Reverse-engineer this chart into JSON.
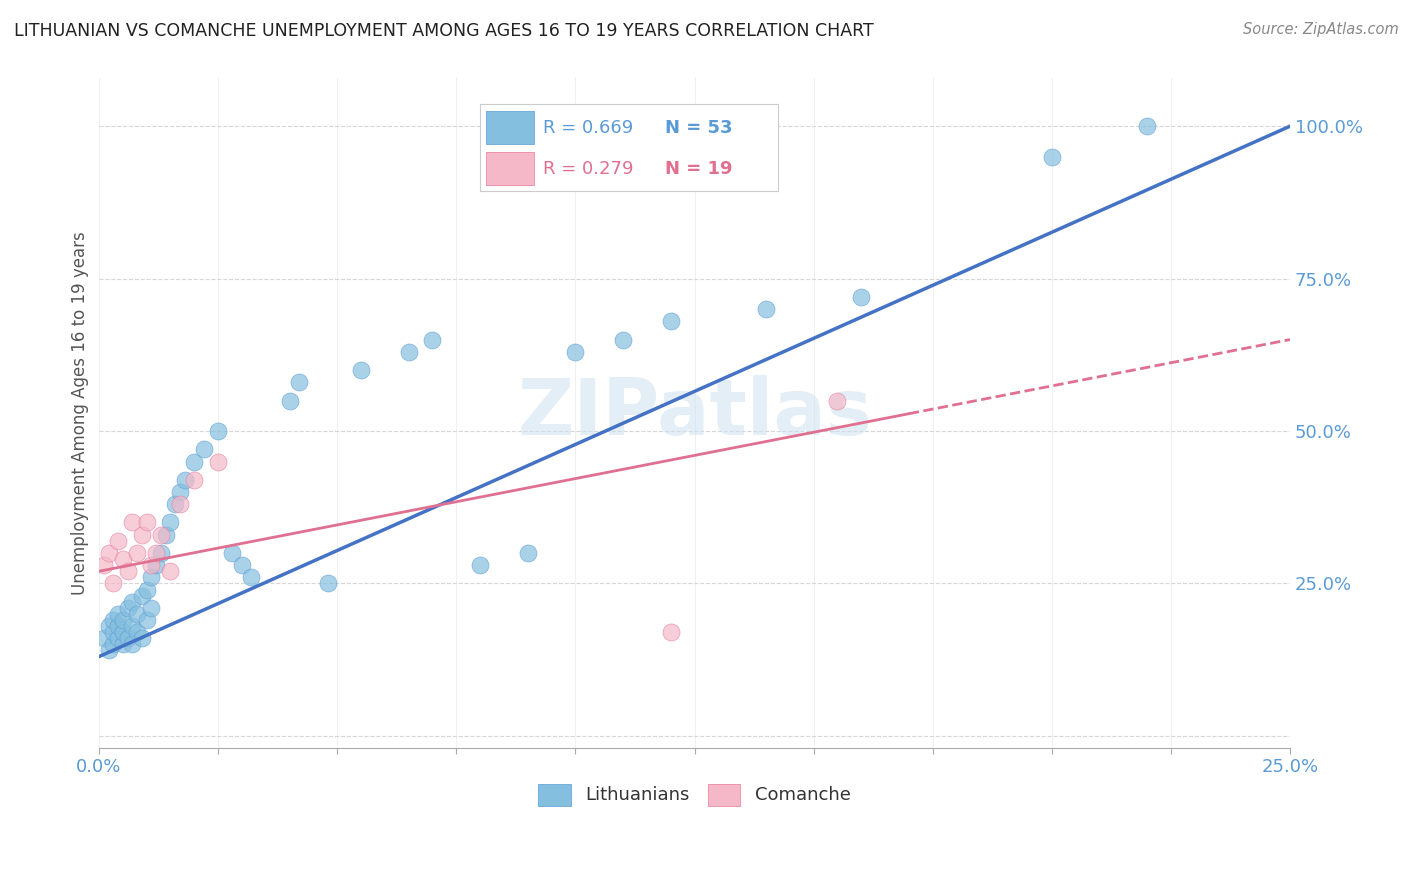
{
  "title": "LITHUANIAN VS COMANCHE UNEMPLOYMENT AMONG AGES 16 TO 19 YEARS CORRELATION CHART",
  "source": "Source: ZipAtlas.com",
  "ylabel": "Unemployment Among Ages 16 to 19 years",
  "xlim": [
    0.0,
    0.25
  ],
  "ylim": [
    -0.02,
    1.08
  ],
  "blue_color": "#85bfdf",
  "blue_edge_color": "#5b9bd5",
  "pink_color": "#f4b8c8",
  "pink_edge_color": "#e87898",
  "blue_line_color": "#4472c4",
  "pink_line_color": "#e07090",
  "axis_tick_color": "#5b9bd5",
  "title_color": "#222222",
  "source_color": "#888888",
  "watermark_color": "#cce0f0",
  "grid_color": "#cccccc",
  "legend_R_color": "#5b9bd5",
  "legend_N_color": "#5b9bd5",
  "legend_pink_R_color": "#e07090",
  "legend_pink_N_color": "#e07090",
  "blue_scatter_x": [
    0.001,
    0.002,
    0.002,
    0.003,
    0.003,
    0.003,
    0.004,
    0.004,
    0.004,
    0.005,
    0.005,
    0.005,
    0.006,
    0.006,
    0.007,
    0.007,
    0.007,
    0.008,
    0.008,
    0.009,
    0.009,
    0.01,
    0.01,
    0.011,
    0.011,
    0.012,
    0.013,
    0.014,
    0.015,
    0.016,
    0.017,
    0.018,
    0.02,
    0.022,
    0.025,
    0.028,
    0.03,
    0.032,
    0.04,
    0.042,
    0.048,
    0.055,
    0.065,
    0.07,
    0.08,
    0.09,
    0.1,
    0.11,
    0.12,
    0.14,
    0.16,
    0.2,
    0.22
  ],
  "blue_scatter_y": [
    0.16,
    0.14,
    0.18,
    0.15,
    0.17,
    0.19,
    0.16,
    0.18,
    0.2,
    0.15,
    0.17,
    0.19,
    0.16,
    0.21,
    0.15,
    0.18,
    0.22,
    0.17,
    0.2,
    0.16,
    0.23,
    0.19,
    0.24,
    0.21,
    0.26,
    0.28,
    0.3,
    0.33,
    0.35,
    0.38,
    0.4,
    0.42,
    0.45,
    0.47,
    0.5,
    0.3,
    0.28,
    0.26,
    0.55,
    0.58,
    0.25,
    0.6,
    0.63,
    0.65,
    0.28,
    0.3,
    0.63,
    0.65,
    0.68,
    0.7,
    0.72,
    0.95,
    1.0
  ],
  "pink_scatter_x": [
    0.001,
    0.002,
    0.003,
    0.004,
    0.005,
    0.006,
    0.007,
    0.008,
    0.009,
    0.01,
    0.011,
    0.012,
    0.013,
    0.015,
    0.017,
    0.02,
    0.025,
    0.12,
    0.155
  ],
  "pink_scatter_y": [
    0.28,
    0.3,
    0.25,
    0.32,
    0.29,
    0.27,
    0.35,
    0.3,
    0.33,
    0.35,
    0.28,
    0.3,
    0.33,
    0.27,
    0.38,
    0.42,
    0.45,
    0.17,
    0.55
  ],
  "blue_line_x0": 0.0,
  "blue_line_y0": 0.13,
  "blue_line_x1": 0.25,
  "blue_line_y1": 1.0,
  "pink_line_x0": 0.0,
  "pink_line_y0": 0.27,
  "pink_line_x1": 0.25,
  "pink_line_y1": 0.65,
  "pink_line_dash_x0": 0.17,
  "pink_line_dash_x1": 0.25,
  "yticks": [
    0.0,
    0.25,
    0.5,
    0.75,
    1.0
  ],
  "ytick_labels": [
    "",
    "25.0%",
    "50.0%",
    "75.0%",
    "100.0%"
  ]
}
